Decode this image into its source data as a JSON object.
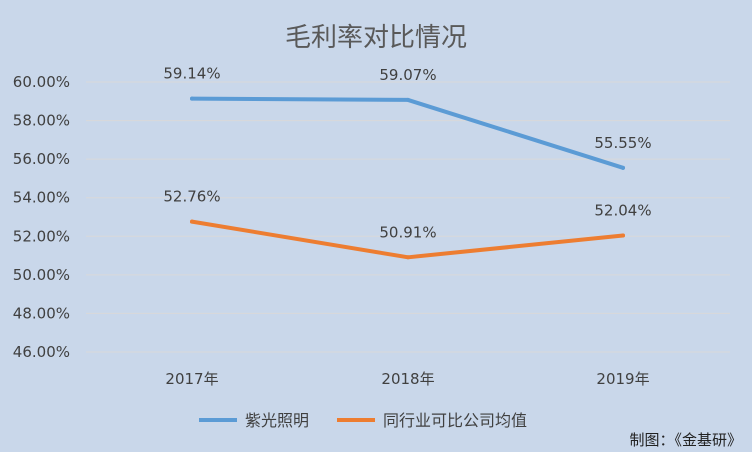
{
  "chart_data": {
    "type": "line",
    "title": "毛利率对比情况",
    "categories": [
      "2017年",
      "2018年",
      "2019年"
    ],
    "series": [
      {
        "name": "紫光照明",
        "values": [
          59.14,
          59.07,
          55.55
        ],
        "labels": [
          "59.14%",
          "59.07%",
          "55.55%"
        ],
        "color": "#5b9bd5"
      },
      {
        "name": "同行业可比公司均值",
        "values": [
          52.76,
          50.91,
          52.04
        ],
        "labels": [
          "52.76%",
          "50.91%",
          "52.04%"
        ],
        "color": "#ed7d31"
      }
    ],
    "ylim": [
      46,
      60
    ],
    "yticks": [
      46,
      48,
      50,
      52,
      54,
      56,
      58,
      60
    ],
    "ytick_labels": [
      "46.00%",
      "48.00%",
      "50.00%",
      "52.00%",
      "54.00%",
      "56.00%",
      "58.00%",
      "60.00%"
    ],
    "grid": true,
    "legend_position": "bottom",
    "gridline_color": "#d9d9d9",
    "background_color": "#c9d7ea"
  },
  "credit": "制图：《金基研》"
}
